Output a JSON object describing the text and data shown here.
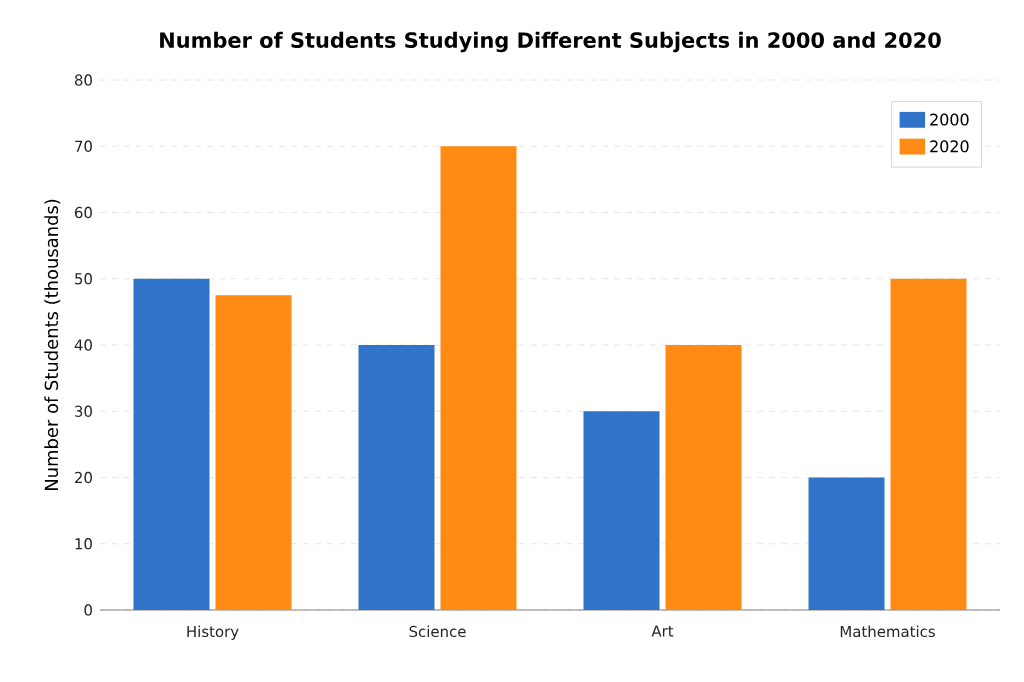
{
  "chart_data": {
    "type": "bar",
    "title": "Number of Students Studying Different Subjects in 2000 and 2020",
    "ylabel": "Number of Students (thousands)",
    "categories": [
      "History",
      "Science",
      "Art",
      "Mathematics"
    ],
    "series": [
      {
        "name": "2000",
        "color": "#2f74c8",
        "values": [
          50,
          40,
          30,
          20
        ]
      },
      {
        "name": "2020",
        "color": "#ff8a14",
        "values": [
          47.5,
          70,
          40,
          50
        ]
      }
    ],
    "ylim": [
      0,
      80
    ],
    "yticks": [
      0,
      10,
      20,
      30,
      40,
      50,
      60,
      70,
      80
    ],
    "grid": "y",
    "legend": "top right"
  }
}
